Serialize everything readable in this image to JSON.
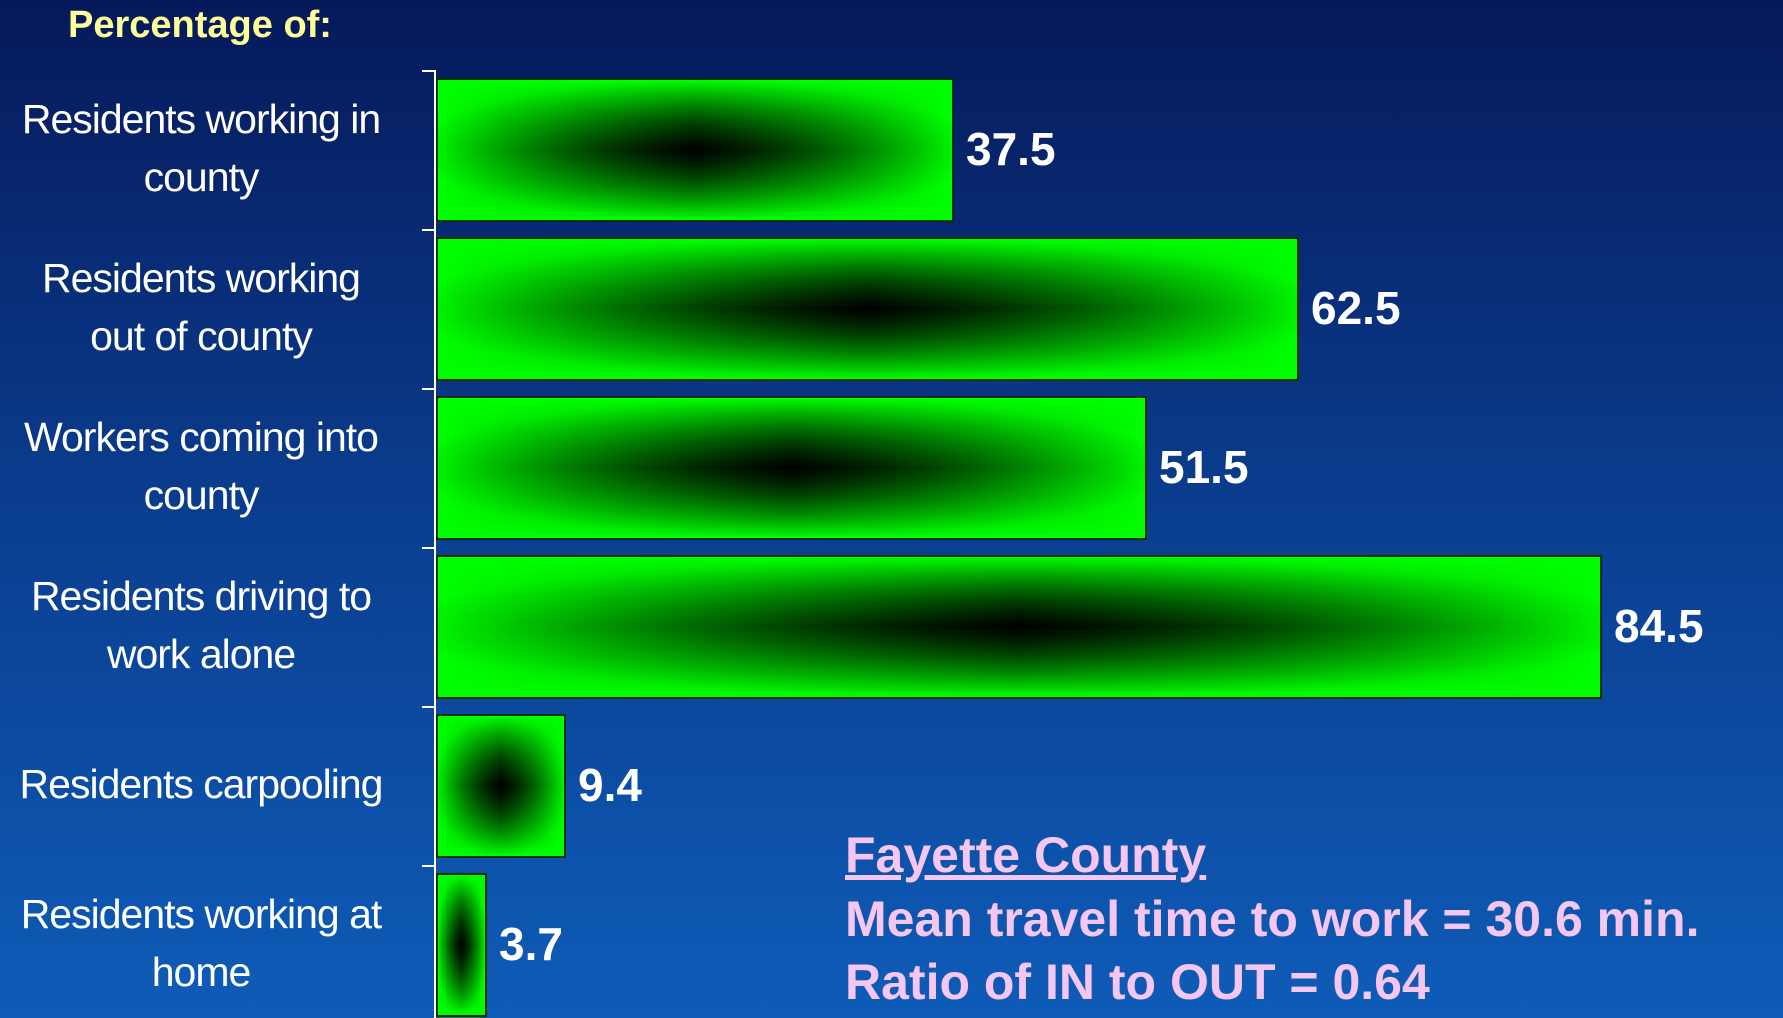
{
  "heading": "Percentage of:",
  "chart_data": {
    "type": "bar",
    "orientation": "horizontal",
    "title": "Percentage of:",
    "categories": [
      "Residents working in county",
      "Residents working out of county",
      "Workers coming into county",
      "Residents driving to work alone",
      "Residents carpooling",
      "Residents working at home"
    ],
    "label_lines": [
      [
        "Residents working in",
        "county"
      ],
      [
        "Residents working",
        "out of county"
      ],
      [
        "Workers coming into",
        "county"
      ],
      [
        "Residents driving to",
        "work alone"
      ],
      [
        "Residents carpooling"
      ],
      [
        "Residents working at",
        "home"
      ]
    ],
    "values": [
      37.5,
      62.5,
      51.5,
      84.5,
      9.4,
      3.7
    ],
    "value_labels": [
      "37.5",
      "62.5",
      "51.5",
      "84.5",
      "9.4",
      "3.7"
    ],
    "xlim": [
      0,
      100
    ],
    "grid": false,
    "legend": "none",
    "bar_color": "#00ff00",
    "bar_center_color": "#000000"
  },
  "info": {
    "county": "Fayette County",
    "travel_time": "Mean travel time to work = 30.6  min.",
    "ratio": "Ratio of IN to OUT = 0.64"
  },
  "colors": {
    "heading": "#ffff99",
    "info_text": "#f4c6f0",
    "label_text": "#ffffff"
  }
}
